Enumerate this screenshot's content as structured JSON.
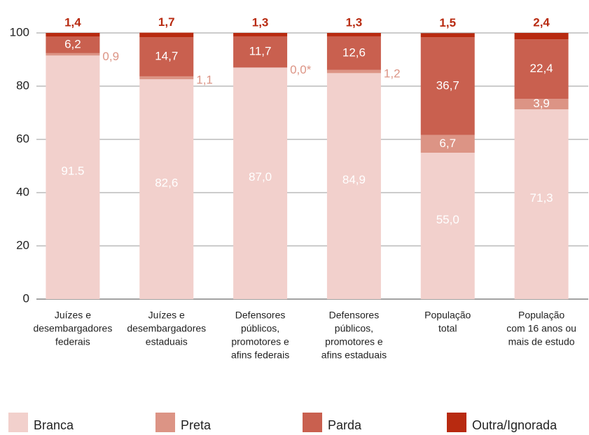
{
  "chart_data": {
    "type": "stacked_bar",
    "categories": [
      [
        "Juízes e",
        "desembargadores",
        "federais"
      ],
      [
        "Juízes e",
        "desembargadores",
        "estaduais"
      ],
      [
        "Defensores",
        "públicos,",
        "promotores e",
        "afins federais"
      ],
      [
        "Defensores",
        "públicos,",
        "promotores e",
        "afins estaduais"
      ],
      [
        "População",
        "total"
      ],
      [
        "População",
        "com 16 anos ou",
        "mais de estudo"
      ]
    ],
    "series": [
      {
        "name": "Branca",
        "color": "#f2d0cc",
        "values": [
          91.5,
          82.6,
          87.0,
          84.9,
          55.0,
          71.3
        ],
        "value_labels": [
          "91.5",
          "82,6",
          "87,0",
          "84,9",
          "55,0",
          "71,3"
        ]
      },
      {
        "name": "Preta",
        "color": "#dc9485",
        "values": [
          0.9,
          1.1,
          0.0,
          1.2,
          6.7,
          3.9
        ],
        "value_labels": [
          "0,9",
          "1,1",
          "0,0*",
          "1,2",
          "6,7",
          "3,9"
        ]
      },
      {
        "name": "Parda",
        "color": "#c9604f",
        "values": [
          6.2,
          14.7,
          11.7,
          12.6,
          36.7,
          22.4
        ],
        "value_labels": [
          "6,2",
          "14,7",
          "11,7",
          "12,6",
          "36,7",
          "22,4"
        ]
      },
      {
        "name": "Outra/Ignorada",
        "color": "#b82a10",
        "values": [
          1.4,
          1.7,
          1.3,
          1.3,
          1.5,
          2.4
        ],
        "value_labels": [
          "1,4",
          "1,7",
          "1,3",
          "1,3",
          "1,5",
          "2,4"
        ]
      }
    ],
    "ylim": [
      0,
      100
    ],
    "yticks": [
      0,
      20,
      40,
      60,
      80,
      100
    ],
    "grid": true
  }
}
